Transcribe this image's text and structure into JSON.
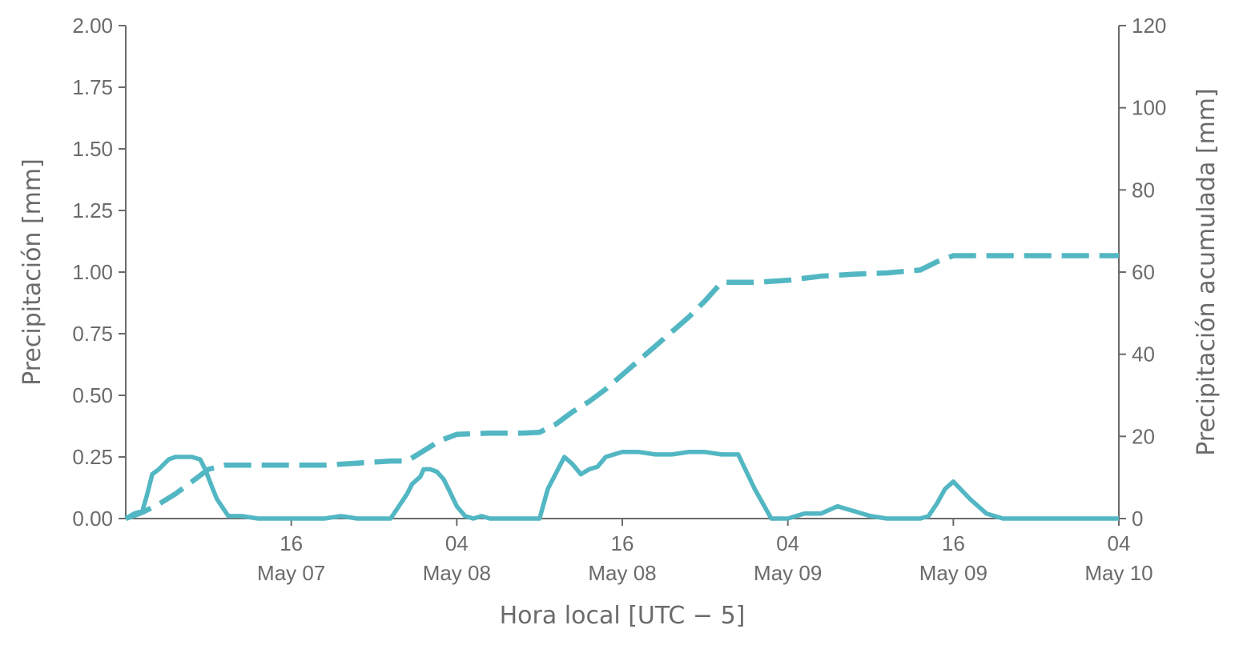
{
  "chart_data": {
    "type": "line",
    "title": "",
    "xlabel": "Hora local [UTC − 5]",
    "ylabel_left": "Precipitación [mm]",
    "ylabel_right": "Precipitación acumulada [mm]",
    "color": "#52b7c3",
    "x_range_hours": [
      0,
      60
    ],
    "ylim_left": [
      0,
      2.0
    ],
    "ylim_right": [
      0,
      120
    ],
    "left_ticks": [
      "0.00",
      "0.25",
      "0.50",
      "0.75",
      "1.00",
      "1.25",
      "1.50",
      "1.75",
      "2.00"
    ],
    "left_tick_values": [
      0,
      0.25,
      0.5,
      0.75,
      1.0,
      1.25,
      1.5,
      1.75,
      2.0
    ],
    "right_ticks": [
      "0",
      "20",
      "40",
      "60",
      "80",
      "100",
      "120"
    ],
    "right_tick_values": [
      0,
      20,
      40,
      60,
      80,
      100,
      120
    ],
    "x_ticks": [
      {
        "hour": 10,
        "time": "16",
        "date": "May 07"
      },
      {
        "hour": 20,
        "time": "04",
        "date": "May 08"
      },
      {
        "hour": 30,
        "time": "16",
        "date": "May 08"
      },
      {
        "hour": 40,
        "time": "04",
        "date": "May 09"
      },
      {
        "hour": 50,
        "time": "16",
        "date": "May 09"
      },
      {
        "hour": 60,
        "time": "04",
        "date": "May 10"
      }
    ],
    "series": [
      {
        "style": "solid",
        "axis": "left",
        "x": [
          0,
          0.5,
          1,
          1.3,
          1.6,
          2,
          2.3,
          2.6,
          3,
          3.5,
          4,
          4.5,
          4.8,
          5.2,
          5.5,
          5.8,
          6.2,
          7,
          8,
          9,
          10,
          11,
          12,
          13,
          14,
          15,
          16,
          16.5,
          17,
          17.3,
          17.8,
          18,
          18.4,
          18.8,
          19.2,
          19.5,
          20,
          20.5,
          21,
          21.5,
          22,
          23,
          25,
          25.5,
          26.5,
          27,
          27.5,
          28,
          28.5,
          29,
          30,
          31,
          32,
          33,
          34,
          35,
          36,
          37,
          38,
          39,
          40,
          41,
          42,
          43,
          44,
          45,
          46,
          47,
          48,
          48.5,
          49,
          49.5,
          50,
          51,
          52,
          53,
          54,
          55,
          60
        ],
        "values": [
          0.0,
          0.02,
          0.03,
          0.1,
          0.18,
          0.2,
          0.22,
          0.24,
          0.25,
          0.25,
          0.25,
          0.24,
          0.2,
          0.13,
          0.08,
          0.05,
          0.01,
          0.01,
          0.0,
          0.0,
          0.0,
          0.0,
          0.0,
          0.01,
          0.0,
          0.0,
          0.0,
          0.05,
          0.1,
          0.14,
          0.17,
          0.2,
          0.2,
          0.19,
          0.16,
          0.12,
          0.05,
          0.01,
          0.0,
          0.01,
          0.0,
          0.0,
          0.0,
          0.12,
          0.25,
          0.22,
          0.18,
          0.2,
          0.21,
          0.25,
          0.27,
          0.27,
          0.26,
          0.26,
          0.27,
          0.27,
          0.26,
          0.26,
          0.12,
          0.0,
          0.0,
          0.02,
          0.02,
          0.05,
          0.03,
          0.01,
          0.0,
          0.0,
          0.0,
          0.01,
          0.06,
          0.12,
          0.15,
          0.08,
          0.02,
          0.0,
          0.0,
          0.0,
          0.0
        ]
      },
      {
        "style": "dashed",
        "axis": "right",
        "x": [
          0,
          1,
          2,
          3,
          4,
          5,
          6,
          8,
          10,
          12,
          14,
          16,
          17,
          18,
          19,
          20,
          22,
          24,
          25,
          26,
          27,
          28,
          29,
          30,
          32,
          34,
          35,
          36,
          38,
          40,
          42,
          44,
          46,
          48,
          49,
          50,
          52,
          55,
          58,
          60
        ],
        "values": [
          0,
          1.5,
          3.5,
          6,
          9,
          12,
          13,
          13,
          13,
          13,
          13.5,
          14,
          14,
          16.5,
          19,
          20.5,
          20.8,
          20.8,
          21,
          23,
          26,
          28.5,
          31.5,
          35,
          42,
          49,
          53,
          57.5,
          57.5,
          58,
          59,
          59.5,
          59.8,
          60.5,
          62.5,
          64,
          64,
          64,
          64,
          64
        ]
      }
    ]
  }
}
